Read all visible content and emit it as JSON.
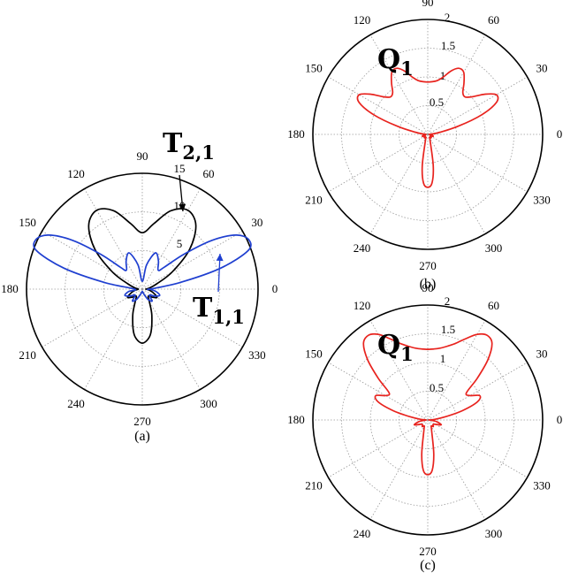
{
  "chart_data": [
    {
      "id": "a",
      "type": "line",
      "polar": true,
      "caption": "(a)",
      "angle_ticks": [
        "0",
        "30",
        "60",
        "90",
        "120",
        "150",
        "180",
        "210",
        "240",
        "270",
        "300",
        "330"
      ],
      "radial_ticks": [
        "5",
        "10",
        "15"
      ],
      "rmax": 15,
      "grid": true,
      "annotations": [
        {
          "main": "T",
          "sub": "2,1",
          "color": "#000000"
        },
        {
          "main": "T",
          "sub": "1,1",
          "color": "#1f3fd0"
        }
      ],
      "series": [
        {
          "label": "T2,1",
          "color": "#000000",
          "theta": [
            0,
            10,
            20,
            30,
            40,
            50,
            60,
            70,
            80,
            90,
            100,
            110,
            120,
            130,
            140,
            150,
            160,
            170,
            180,
            190,
            200,
            210,
            220,
            230,
            240,
            250,
            260,
            270,
            280,
            290,
            300,
            310,
            320,
            330,
            340,
            350,
            360
          ],
          "r": [
            0.5,
            1.0,
            2.0,
            4.5,
            8.0,
            10.8,
            11.8,
            10.8,
            8.6,
            7.3,
            8.6,
            10.8,
            11.8,
            10.8,
            8.0,
            4.5,
            2.0,
            1.0,
            0.5,
            1.0,
            1.6,
            2.2,
            1.6,
            1.2,
            1.8,
            3.6,
            6.0,
            7.0,
            6.0,
            3.6,
            1.8,
            1.2,
            1.6,
            2.2,
            1.6,
            1.0,
            0.5
          ]
        },
        {
          "label": "T1,1",
          "color": "#1f3fd0",
          "theta": [
            0,
            10,
            15,
            20,
            25,
            30,
            35,
            40,
            45,
            50,
            60,
            70,
            80,
            90,
            100,
            110,
            120,
            130,
            135,
            140,
            145,
            150,
            155,
            160,
            165,
            170,
            180,
            190,
            200,
            210,
            220,
            230,
            240,
            250,
            260,
            270,
            280,
            290,
            300,
            310,
            320,
            330,
            340,
            350,
            360
          ],
          "r": [
            1.0,
            5.0,
            10.5,
            14.6,
            15.2,
            14.0,
            11.0,
            7.0,
            4.0,
            3.2,
            4.2,
            5.0,
            3.2,
            1.0,
            3.2,
            5.0,
            4.2,
            3.2,
            4.0,
            7.0,
            11.0,
            14.0,
            15.2,
            14.6,
            10.5,
            5.0,
            1.0,
            1.8,
            2.4,
            1.8,
            1.2,
            2.0,
            1.6,
            0.8,
            0.4,
            0.3,
            0.4,
            0.8,
            1.6,
            2.0,
            1.2,
            1.8,
            2.4,
            1.8,
            1.0
          ]
        }
      ]
    },
    {
      "id": "b",
      "type": "line",
      "polar": true,
      "caption": "(b)",
      "angle_ticks": [
        "0",
        "30",
        "60",
        "90",
        "120",
        "150",
        "180",
        "210",
        "240",
        "270",
        "300",
        "330"
      ],
      "radial_ticks": [
        "0.5",
        "1",
        "1.5",
        "2"
      ],
      "rmax": 2,
      "grid": true,
      "annotations": [
        {
          "main": "Q",
          "sub": "1",
          "color": "#000000"
        }
      ],
      "series": [
        {
          "label": "Q1",
          "color": "#e8231e",
          "theta": [
            0,
            5,
            10,
            15,
            20,
            25,
            30,
            35,
            40,
            45,
            50,
            55,
            60,
            65,
            70,
            75,
            80,
            85,
            90,
            95,
            100,
            105,
            110,
            115,
            120,
            125,
            130,
            135,
            140,
            145,
            150,
            155,
            160,
            165,
            170,
            175,
            180,
            190,
            200,
            210,
            220,
            230,
            240,
            250,
            260,
            265,
            270,
            275,
            280,
            290,
            300,
            310,
            320,
            330,
            340,
            350,
            360
          ],
          "r": [
            0.03,
            0.08,
            0.22,
            0.55,
            1.0,
            1.32,
            1.38,
            1.22,
            1.02,
            0.92,
            0.95,
            1.1,
            1.25,
            1.27,
            1.17,
            1.03,
            0.95,
            0.92,
            0.91,
            0.92,
            0.95,
            1.03,
            1.17,
            1.27,
            1.25,
            1.1,
            0.95,
            0.92,
            1.02,
            1.22,
            1.38,
            1.32,
            1.0,
            0.55,
            0.22,
            0.08,
            0.03,
            0.08,
            0.1,
            0.05,
            0.08,
            0.08,
            0.06,
            0.12,
            0.55,
            0.85,
            0.92,
            0.85,
            0.55,
            0.12,
            0.06,
            0.08,
            0.08,
            0.05,
            0.1,
            0.08,
            0.03
          ]
        }
      ]
    },
    {
      "id": "c",
      "type": "line",
      "polar": true,
      "caption": "(c)",
      "angle_ticks": [
        "0",
        "30",
        "60",
        "90",
        "120",
        "150",
        "180",
        "210",
        "240",
        "270",
        "300",
        "330"
      ],
      "radial_ticks": [
        "0.5",
        "1",
        "1.5",
        "2"
      ],
      "rmax": 2,
      "grid": true,
      "annotations": [
        {
          "main": "Q",
          "sub": "1",
          "color": "#000000"
        }
      ],
      "series": [
        {
          "label": "Q1",
          "color": "#e8231e",
          "theta": [
            0,
            5,
            10,
            15,
            20,
            25,
            30,
            35,
            40,
            45,
            50,
            55,
            60,
            65,
            70,
            75,
            80,
            85,
            90,
            95,
            100,
            105,
            110,
            115,
            120,
            125,
            130,
            135,
            140,
            145,
            150,
            155,
            160,
            165,
            170,
            175,
            180,
            190,
            200,
            210,
            220,
            230,
            240,
            250,
            260,
            265,
            270,
            275,
            280,
            290,
            300,
            310,
            320,
            330,
            340,
            350,
            360
          ],
          "r": [
            0.03,
            0.12,
            0.3,
            0.62,
            0.92,
            1.0,
            0.85,
            0.82,
            1.12,
            1.48,
            1.74,
            1.8,
            1.72,
            1.56,
            1.42,
            1.33,
            1.27,
            1.24,
            1.23,
            1.24,
            1.27,
            1.33,
            1.42,
            1.56,
            1.72,
            1.8,
            1.74,
            1.48,
            1.12,
            0.82,
            0.85,
            1.0,
            0.92,
            0.62,
            0.3,
            0.12,
            0.03,
            0.15,
            0.25,
            0.15,
            0.12,
            0.15,
            0.12,
            0.2,
            0.6,
            0.88,
            0.95,
            0.88,
            0.6,
            0.2,
            0.12,
            0.15,
            0.12,
            0.15,
            0.25,
            0.15,
            0.03
          ]
        }
      ]
    }
  ]
}
